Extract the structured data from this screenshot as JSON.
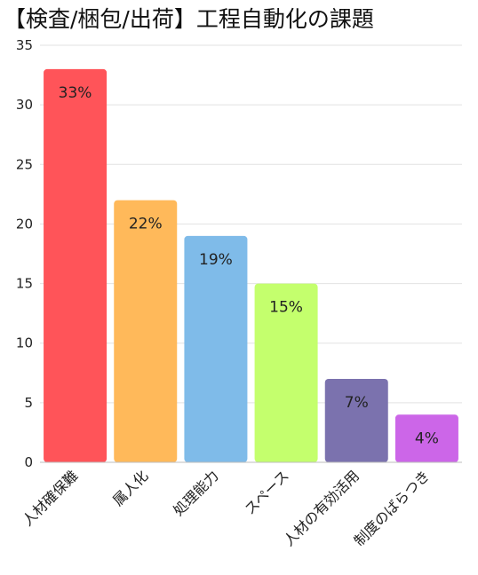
{
  "chart_data": {
    "type": "bar",
    "title": "【検査/梱包/出荷】工程自動化の課題",
    "xlabel": "",
    "ylabel": "",
    "ylim": [
      0,
      35
    ],
    "yticks": [
      0,
      5,
      10,
      15,
      20,
      25,
      30,
      35
    ],
    "grid": true,
    "legend": "none",
    "categories": [
      "人材確保難",
      "属人化",
      "処理能力",
      "スペース",
      "人材の有効活用",
      "制度のばらつき"
    ],
    "values": [
      33,
      22,
      19,
      15,
      7,
      4
    ],
    "data_labels": [
      "33%",
      "22%",
      "19%",
      "15%",
      "7%",
      "4%"
    ],
    "colors": [
      "#ff5459",
      "#ffb95a",
      "#7fbbe9",
      "#c4ff6d",
      "#7b72ae",
      "#cc66e8"
    ]
  }
}
